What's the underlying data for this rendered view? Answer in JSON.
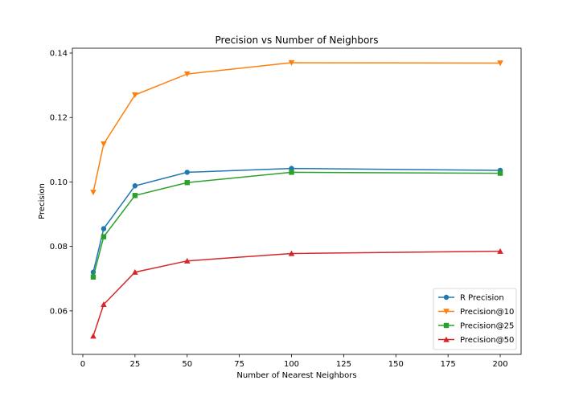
{
  "chart_data": {
    "type": "line",
    "title": "Precision vs Number of Neighbors",
    "xlabel": "Number of Nearest Neighbors",
    "ylabel": "Precision",
    "x": [
      5,
      10,
      25,
      50,
      100,
      200
    ],
    "xlim": [
      -5,
      210
    ],
    "ylim": [
      0.0465,
      0.1415
    ],
    "xticks": [
      0,
      25,
      50,
      75,
      100,
      125,
      150,
      175,
      200
    ],
    "yticks": [
      0.06,
      0.08,
      0.1,
      0.12,
      0.14
    ],
    "ytick_labels": [
      "0.06",
      "0.08",
      "0.10",
      "0.12",
      "0.14"
    ],
    "grid": false,
    "legend_position": "bottom-right",
    "series": [
      {
        "name": "R Precision",
        "color": "#1f77b4",
        "marker": "circle",
        "values": [
          0.072,
          0.0855,
          0.0988,
          0.103,
          0.1042,
          0.1036
        ]
      },
      {
        "name": "Precision@10",
        "color": "#ff7f0e",
        "marker": "triangle-down",
        "values": [
          0.0968,
          0.1118,
          0.127,
          0.1335,
          0.137,
          0.1369
        ]
      },
      {
        "name": "Precision@25",
        "color": "#2ca02c",
        "marker": "square",
        "values": [
          0.0705,
          0.083,
          0.0958,
          0.0998,
          0.103,
          0.1027
        ]
      },
      {
        "name": "Precision@50",
        "color": "#d62728",
        "marker": "triangle-up",
        "values": [
          0.0522,
          0.062,
          0.072,
          0.0755,
          0.0778,
          0.0785
        ]
      }
    ]
  }
}
